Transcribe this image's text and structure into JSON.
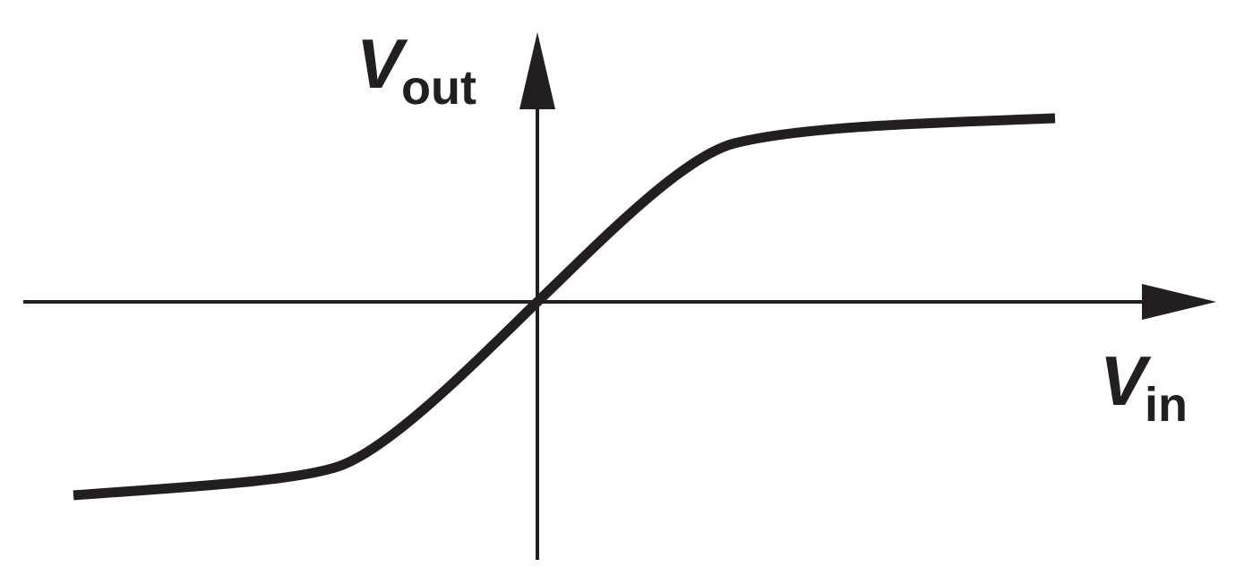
{
  "axes": {
    "y": {
      "symbol": "V",
      "subscript": "out"
    },
    "x": {
      "symbol": "V",
      "subscript": "in"
    }
  },
  "colors": {
    "ink": "#231f20",
    "background": "#ffffff"
  }
}
